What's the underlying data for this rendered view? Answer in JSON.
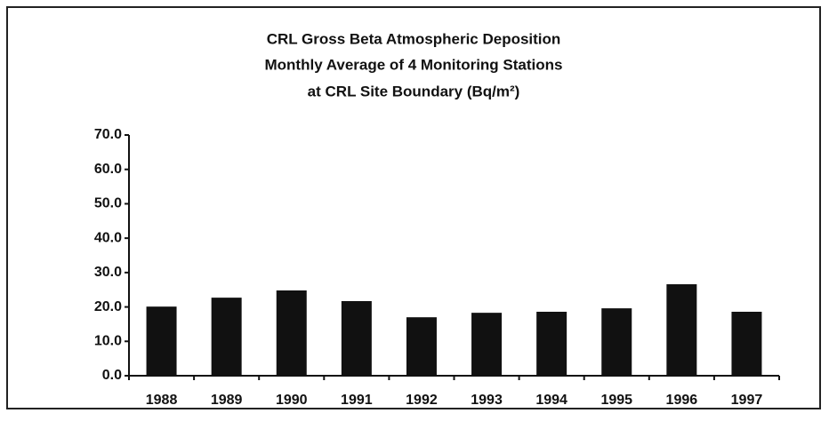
{
  "chart_data": {
    "type": "bar",
    "title": [
      "CRL Gross Beta Atmospheric Deposition",
      "Monthly Average of 4 Monitoring Stations",
      "at CRL Site Boundary (Bq/m²)"
    ],
    "categories": [
      "1988",
      "1989",
      "1990",
      "1991",
      "1992",
      "1993",
      "1994",
      "1995",
      "1996",
      "1997"
    ],
    "values": [
      20.1,
      22.7,
      24.8,
      21.7,
      17.0,
      18.3,
      18.6,
      19.6,
      26.6,
      18.6
    ],
    "color": "#111111",
    "ylim": [
      0,
      70
    ],
    "yticks": [
      {
        "value": 0,
        "label": "0.0"
      },
      {
        "value": 10,
        "label": "10.0"
      },
      {
        "value": 20,
        "label": "20.0"
      },
      {
        "value": 30,
        "label": "30.0"
      },
      {
        "value": 40,
        "label": "40.0"
      },
      {
        "value": 50,
        "label": "50.0"
      },
      {
        "value": 60,
        "label": "60.0"
      },
      {
        "value": 70,
        "label": "70.0"
      }
    ],
    "grid": false
  }
}
